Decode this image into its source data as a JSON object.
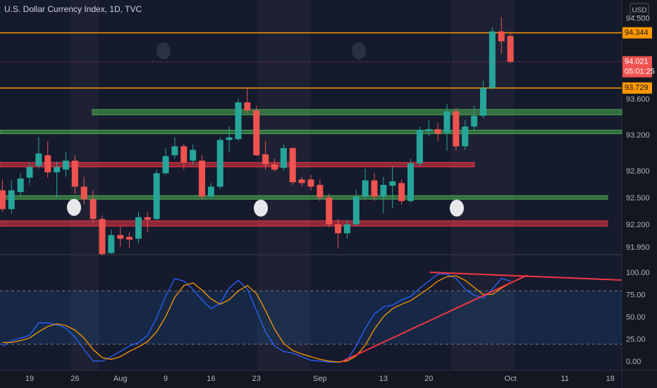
{
  "chart_data": {
    "type": "candlestick",
    "title": "U.S. Dollar Currency Index, 1D, TVC",
    "currency": "USD",
    "categories": [
      null,
      null,
      null,
      "19",
      null,
      null,
      null,
      null,
      "26",
      null,
      null,
      null,
      null,
      "Aug",
      null,
      null,
      null,
      null,
      "9",
      null,
      null,
      null,
      null,
      "16",
      null,
      null,
      null,
      null,
      "23",
      null,
      null,
      null,
      null,
      null,
      null,
      "Sep",
      null,
      null,
      null,
      null,
      null,
      null,
      "13",
      null,
      null,
      null,
      null,
      "20",
      null,
      null,
      null,
      null,
      null,
      null,
      null,
      null,
      "Oct",
      null,
      null,
      null,
      null,
      null,
      "11",
      null,
      null,
      null,
      null,
      "18"
    ],
    "open": [
      92.59,
      92.38,
      92.57,
      92.73,
      92.86,
      92.98,
      92.79,
      92.82,
      92.92,
      92.63,
      92.49,
      92.27,
      91.89,
      92.09,
      92.07,
      92.05,
      92.29,
      92.27,
      92.78,
      92.98,
      93.08,
      92.92,
      92.92,
      92.52,
      92.63,
      93.15,
      93.16,
      93.57,
      93.48,
      92.99,
      92.88,
      92.84,
      93.06,
      92.71,
      92.71,
      92.65,
      92.51,
      92.21,
      92.11,
      92.21,
      92.52,
      92.7,
      92.52,
      92.64,
      92.67,
      92.47,
      92.89,
      93.25,
      93.27,
      93.23,
      93.47,
      93.08,
      93.3,
      93.42,
      93.73,
      94.36,
      94.31,
      null,
      null,
      null,
      null,
      null,
      null,
      null,
      null,
      null,
      null,
      null
    ],
    "high": [
      92.71,
      92.7,
      92.78,
      92.9,
      93.18,
      93.14,
      92.91,
      93.02,
      92.98,
      92.74,
      92.59,
      92.31,
      92.15,
      92.19,
      92.12,
      92.35,
      92.35,
      92.82,
      93.06,
      93.18,
      93.11,
      93.1,
      92.98,
      92.67,
      93.18,
      93.3,
      93.61,
      93.73,
      93.53,
      93.14,
      92.94,
      93.1,
      93.07,
      92.74,
      92.76,
      92.71,
      92.55,
      92.27,
      92.26,
      92.59,
      92.83,
      92.78,
      92.74,
      92.86,
      92.71,
      92.94,
      93.3,
      93.37,
      93.34,
      93.55,
      93.51,
      93.37,
      93.53,
      93.81,
      94.41,
      94.52,
      94.34,
      null,
      null,
      null,
      null,
      null,
      null,
      null,
      null,
      null,
      null,
      null
    ],
    "low": [
      92.35,
      92.33,
      92.52,
      92.65,
      92.83,
      92.73,
      92.51,
      92.74,
      92.55,
      92.43,
      92.23,
      91.86,
      91.88,
      91.96,
      91.95,
      92.0,
      92.12,
      92.26,
      92.76,
      92.94,
      92.82,
      92.88,
      92.49,
      92.49,
      92.6,
      93.02,
      93.14,
      93.45,
      92.97,
      92.82,
      92.8,
      92.81,
      92.65,
      92.63,
      92.59,
      92.47,
      92.18,
      91.94,
      92.05,
      92.19,
      92.5,
      92.47,
      92.33,
      92.39,
      92.43,
      92.45,
      92.86,
      93.19,
      93.14,
      93.03,
      93.03,
      93.04,
      93.25,
      93.39,
      93.71,
      94.11,
      94.0,
      null,
      null,
      null,
      null,
      null,
      null,
      null,
      null,
      null,
      null,
      null
    ],
    "close": [
      92.38,
      92.59,
      92.72,
      92.85,
      93.0,
      92.79,
      92.85,
      92.92,
      92.63,
      92.49,
      92.27,
      91.88,
      92.09,
      92.05,
      92.04,
      92.29,
      92.26,
      92.78,
      92.97,
      93.08,
      92.9,
      93.04,
      92.52,
      92.63,
      93.15,
      93.18,
      93.57,
      93.48,
      92.98,
      92.88,
      92.82,
      93.06,
      92.68,
      92.67,
      92.63,
      92.51,
      92.21,
      92.11,
      92.21,
      92.52,
      92.7,
      92.52,
      92.65,
      92.69,
      92.47,
      92.89,
      93.26,
      93.27,
      93.22,
      93.47,
      93.08,
      93.3,
      93.42,
      93.73,
      94.36,
      94.25,
      94.021,
      null,
      null,
      null,
      null,
      null,
      null,
      null,
      null,
      null,
      null,
      null
    ],
    "colors": {
      "up": "#26a69a",
      "down": "#ef5350"
    },
    "ylim": [
      91.88,
      94.71
    ],
    "yticks": [
      {
        "value": 94.5,
        "label": "94.500"
      },
      {
        "value": 93.6,
        "label": "93.600"
      },
      {
        "value": 93.2,
        "label": "93.200"
      },
      {
        "value": 92.8,
        "label": "92.800"
      },
      {
        "value": 92.5,
        "label": "92.500"
      },
      {
        "value": 92.2,
        "label": "92.200"
      },
      {
        "value": 91.95,
        "label": "91.950"
      }
    ],
    "hlines": [
      {
        "value": 94.344,
        "color": "#ff9800"
      },
      {
        "value": 93.729,
        "color": "#ff9800"
      }
    ],
    "countdown": "05:01:25",
    "zones": [
      {
        "from": 93.43,
        "to": 93.49,
        "color": "#4caf50"
      },
      {
        "from": 93.22,
        "to": 93.26,
        "color": "#4caf50"
      },
      {
        "from": 92.85,
        "to": 92.9,
        "color": "#f23645"
      },
      {
        "from": 92.49,
        "to": 92.53,
        "color": "#4caf50"
      },
      {
        "from": 92.19,
        "to": 92.25,
        "color": "#f23645"
      }
    ],
    "indicator": {
      "type": "line",
      "ylim": [
        -7,
        120
      ],
      "yticks": [
        {
          "value": 100,
          "label": "100.00"
        },
        {
          "value": 75,
          "label": "75.00"
        },
        {
          "value": 50,
          "label": "50.00"
        },
        {
          "value": 25,
          "label": "25.00"
        },
        {
          "value": 0,
          "label": "0.00"
        }
      ],
      "bands": [
        80,
        20
      ],
      "series": [
        {
          "color": "#2962ff",
          "values": [
            18,
            24,
            27,
            30,
            44,
            44,
            42,
            38,
            28,
            14,
            1,
            1,
            6,
            12,
            18,
            22,
            30,
            50,
            74,
            94,
            91,
            82,
            70,
            60,
            66,
            83,
            92,
            82,
            58,
            34,
            18,
            12,
            10,
            6,
            2,
            1,
            0,
            0,
            2,
            18,
            38,
            54,
            62,
            64,
            70,
            74,
            83,
            91,
            99,
            99,
            94,
            82,
            75,
            72,
            82,
            94,
            91,
            null,
            null,
            null,
            null,
            null,
            null,
            null,
            null,
            null,
            null,
            null
          ]
        },
        {
          "color": "#ff9800",
          "values": [
            22,
            22,
            24,
            27,
            34,
            40,
            43,
            41,
            36,
            27,
            14,
            5,
            3,
            6,
            12,
            17,
            23,
            34,
            51,
            73,
            86,
            89,
            81,
            71,
            65,
            70,
            80,
            86,
            77,
            58,
            37,
            21,
            13,
            9,
            6,
            3,
            1,
            0,
            1,
            7,
            19,
            37,
            51,
            60,
            65,
            69,
            76,
            83,
            91,
            96,
            97,
            92,
            84,
            76,
            76,
            83,
            89,
            null,
            null,
            null,
            null,
            null,
            null,
            null,
            null,
            null,
            null,
            null
          ]
        }
      ]
    }
  }
}
